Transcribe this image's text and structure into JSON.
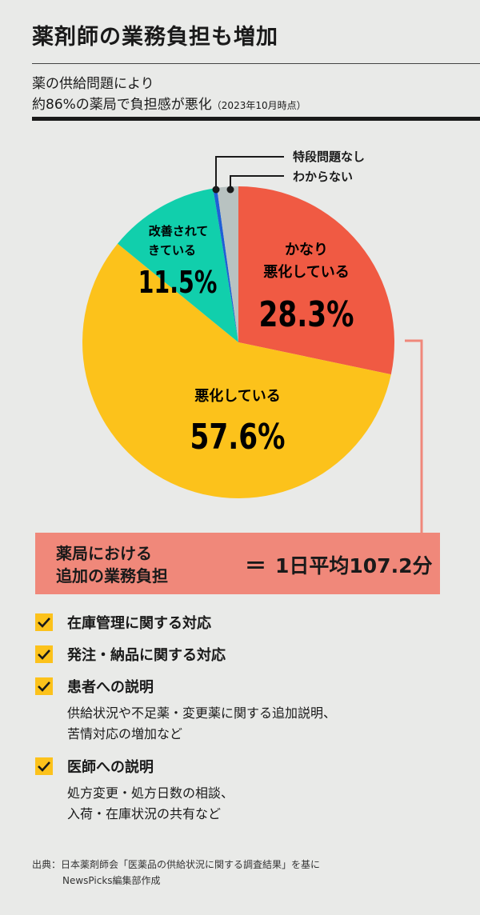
{
  "header": {
    "title": "薬剤師の業務負担も増加",
    "subtitle_line1": "薬の供給問題により",
    "subtitle_line2": "約86%の薬局で負担感が悪化",
    "subtitle_note": "（2023年10月時点）"
  },
  "chart_data": {
    "type": "pie",
    "title": "薬の供給問題により約86%の薬局で負担感が悪化（2023年10月時点）",
    "slices": [
      {
        "label": "かなり悪化している",
        "label_lines": [
          "かなり",
          "悪化している"
        ],
        "value": 28.3,
        "value_label": "28.3%",
        "color": "#f05a43"
      },
      {
        "label": "悪化している",
        "label_lines": [
          "悪化している"
        ],
        "value": 57.6,
        "value_label": "57.6%",
        "color": "#fcc21b"
      },
      {
        "label": "改善されてきている",
        "label_lines": [
          "改善されて",
          "きている"
        ],
        "value": 11.5,
        "value_label": "11.5%",
        "color": "#11cfac"
      },
      {
        "label": "特段問題なし",
        "label_lines": [
          "特段問題なし"
        ],
        "value": 0.4,
        "value_label": "",
        "color": "#1f5fd6"
      },
      {
        "label": "わからない",
        "label_lines": [
          "わからない"
        ],
        "value": 2.2,
        "value_label": "",
        "color": "#b8c2c1"
      }
    ]
  },
  "callout": {
    "label_line1": "薬局における",
    "label_line2": "追加の業務負担",
    "equals": "＝",
    "value": "1日平均107.2分"
  },
  "items": [
    {
      "label": "在庫管理に関する対応",
      "details": []
    },
    {
      "label": "発注・納品に関する対応",
      "details": []
    },
    {
      "label": "患者への説明",
      "details": [
        "供給状況や不足薬・変更薬に関する追加説明、",
        "苦情対応の増加など"
      ]
    },
    {
      "label": "医師への説明",
      "details": [
        "処方変更・処方日数の相談、",
        "入荷・在庫状況の共有など"
      ]
    }
  ],
  "source": {
    "line1": "出典：日本薬剤師会「医薬品の供給状況に関する調査結果」を基に",
    "line2": "NewsPicks編集部作成"
  }
}
